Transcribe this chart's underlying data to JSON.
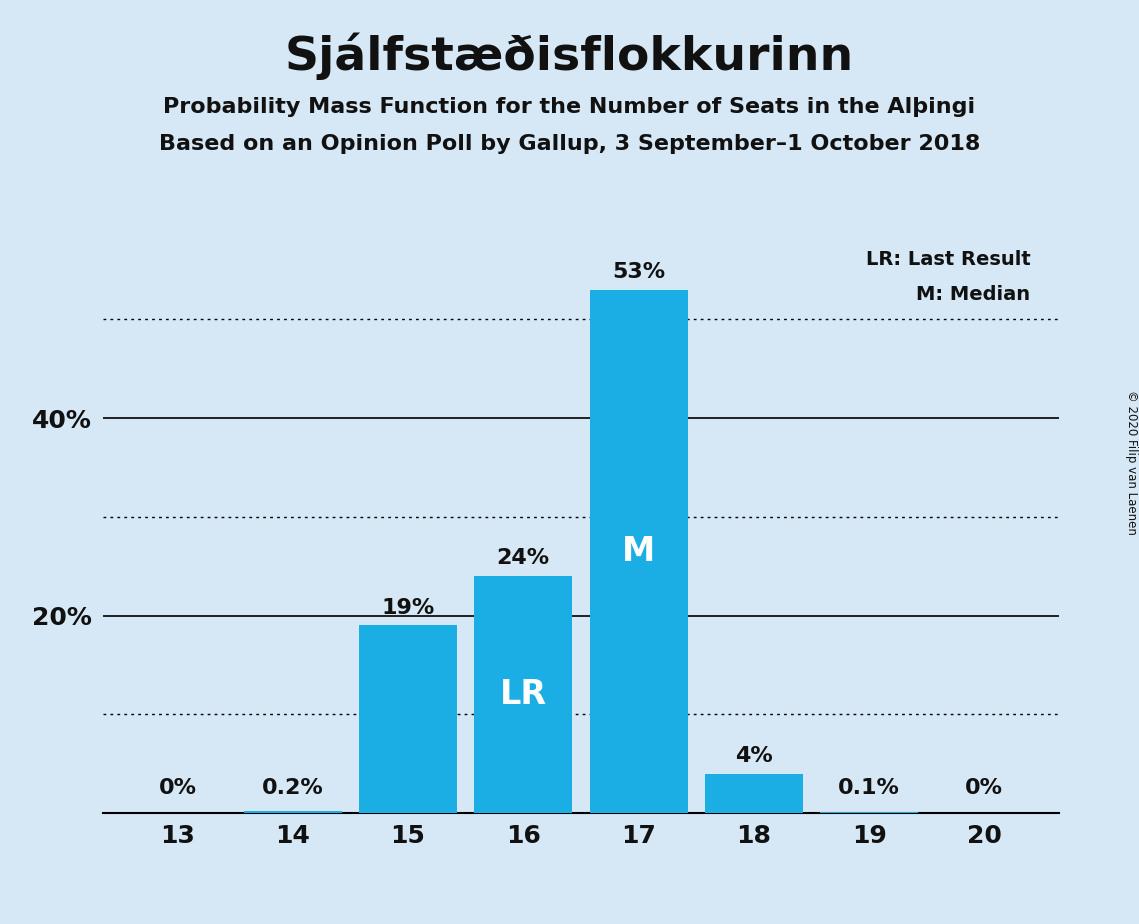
{
  "title": "Sjálfstæðisflokkurinn",
  "subtitle1": "Probability Mass Function for the Number of Seats in the Alþingi",
  "subtitle2": "Based on an Opinion Poll by Gallup, 3 September–1 October 2018",
  "copyright": "© 2020 Filip van Laenen",
  "categories": [
    13,
    14,
    15,
    16,
    17,
    18,
    19,
    20
  ],
  "values": [
    0.0,
    0.2,
    19.0,
    24.0,
    53.0,
    4.0,
    0.1,
    0.0
  ],
  "bar_color": "#1aaee5",
  "background_color": "#d6e8f5",
  "text_color": "#111111",
  "bar_labels": [
    "0%",
    "0.2%",
    "19%",
    "24%",
    "53%",
    "4%",
    "0.1%",
    "0%"
  ],
  "small_label_threshold": 1.0,
  "lr_bar": 16,
  "median_bar": 17,
  "ylim": [
    0,
    58
  ],
  "solid_gridlines": [
    20,
    40
  ],
  "dotted_gridlines": [
    10,
    30,
    50
  ],
  "legend_lr": "LR: Last Result",
  "legend_m": "M: Median"
}
